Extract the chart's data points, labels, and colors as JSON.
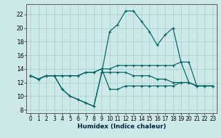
{
  "background_color": "#cce8e8",
  "grid_color": "#b0d4d4",
  "line_color": "#006666",
  "xlabel": "Humidex (Indice chaleur)",
  "xlim": [
    -0.5,
    23.5
  ],
  "ylim": [
    7.5,
    23.5
  ],
  "xticks": [
    0,
    1,
    2,
    3,
    4,
    5,
    6,
    7,
    8,
    9,
    10,
    11,
    12,
    13,
    14,
    15,
    16,
    17,
    18,
    19,
    20,
    21,
    22,
    23
  ],
  "yticks": [
    8,
    10,
    12,
    14,
    16,
    18,
    20,
    22
  ],
  "line_peak_y": [
    13,
    12.5,
    13,
    13,
    11,
    10,
    9.5,
    9,
    8.5,
    13.5,
    19.5,
    20.5,
    22.5,
    22.5,
    21,
    19.5,
    17.5,
    19,
    20,
    15,
    12,
    11.5,
    11.5,
    11.5
  ],
  "line_upper_y": [
    13,
    12.5,
    13,
    13,
    13,
    13,
    13,
    13.5,
    13.5,
    14,
    14,
    14.5,
    14.5,
    14.5,
    14.5,
    14.5,
    14.5,
    14.5,
    14.5,
    15,
    15,
    11.5,
    11.5,
    11.5
  ],
  "line_mid_y": [
    13,
    12.5,
    13,
    13,
    13,
    13,
    13,
    13.5,
    13.5,
    14,
    11,
    11,
    11.5,
    11.5,
    11.5,
    11.5,
    11.5,
    11.5,
    11.5,
    12,
    12,
    11.5,
    11.5,
    11.5
  ],
  "line_low_y": [
    13,
    12.5,
    13,
    13,
    11,
    10,
    9.5,
    9,
    8.5,
    13.5,
    13.5,
    13.5,
    13.5,
    13,
    13,
    13,
    12.5,
    12.5,
    12,
    12,
    12,
    11.5,
    11.5,
    11.5
  ]
}
